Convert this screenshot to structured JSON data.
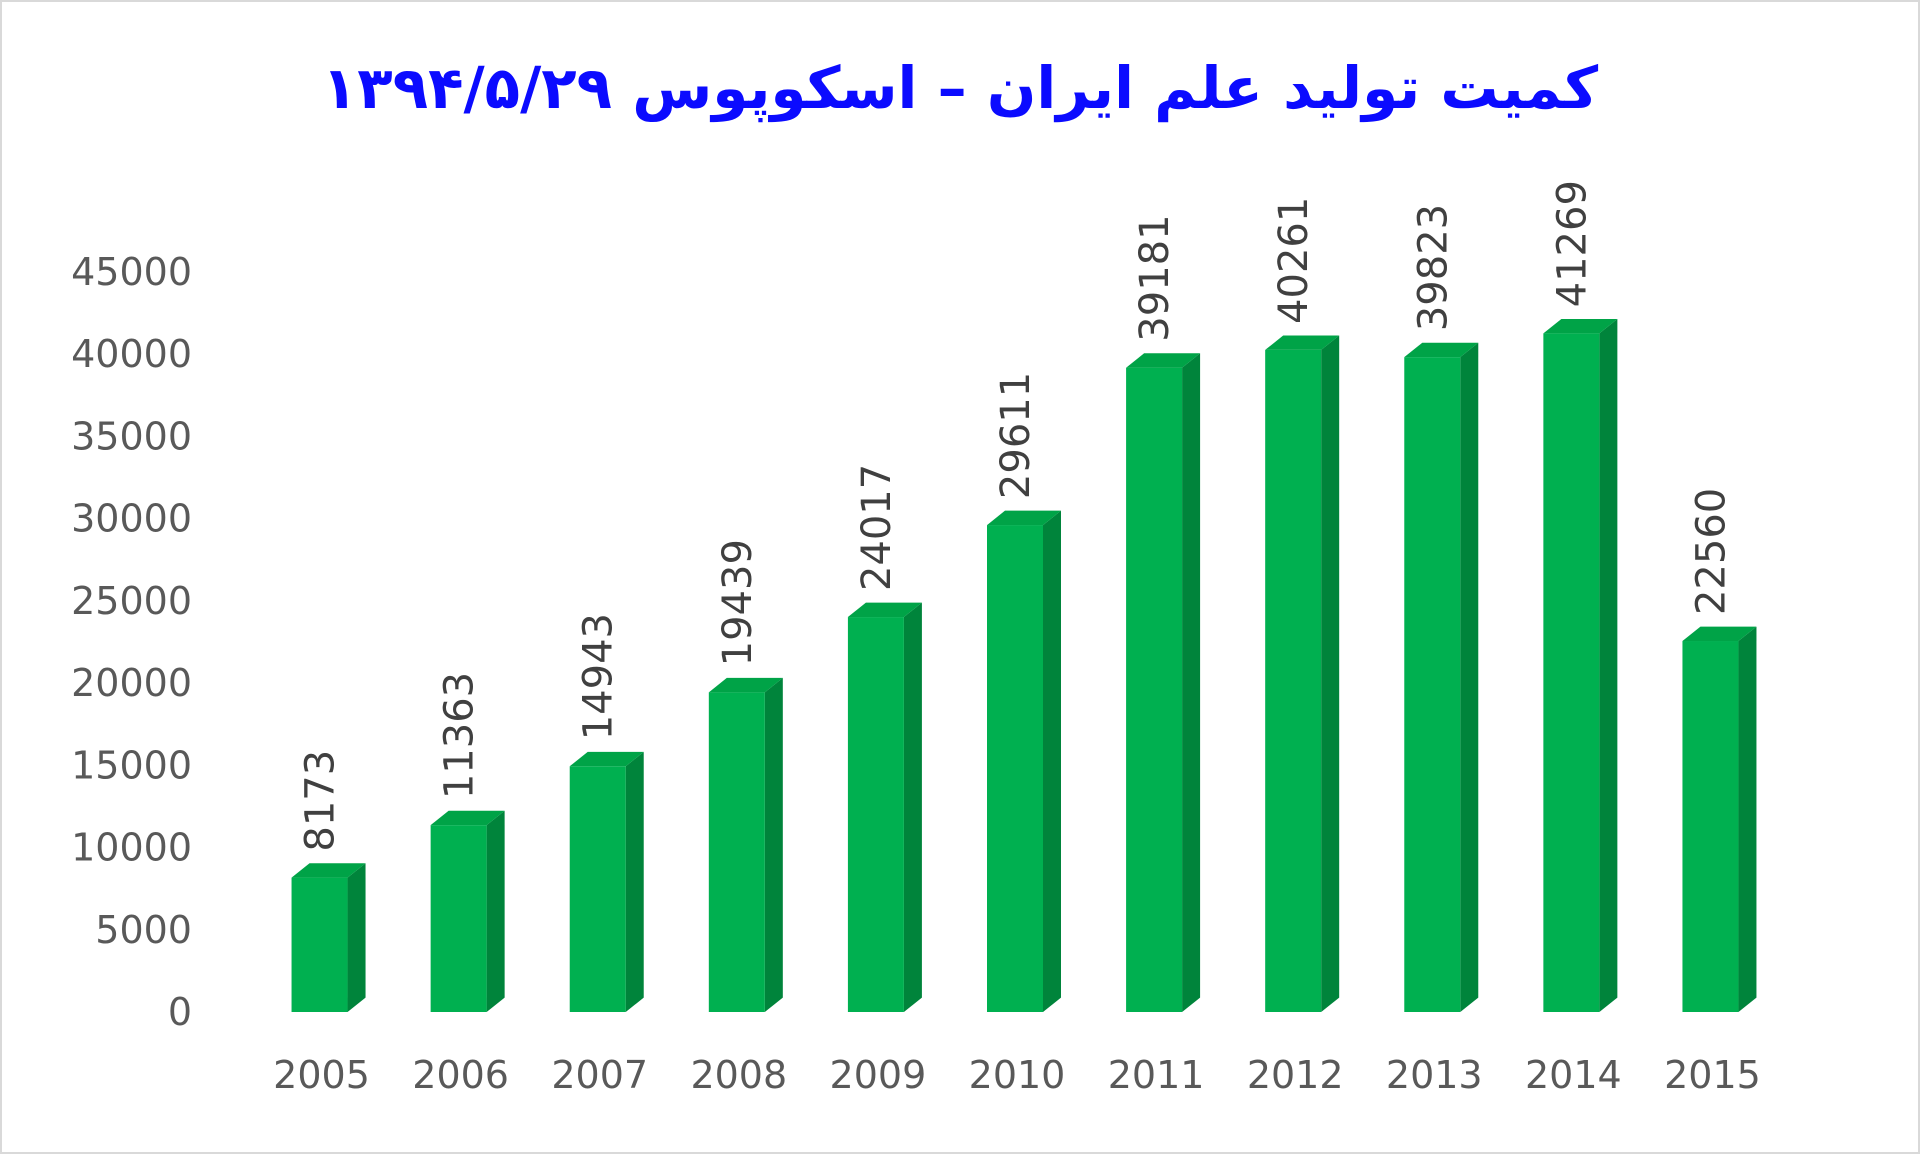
{
  "chart_data": {
    "type": "bar",
    "title": "کمیت تولید علم ایران – اسکوپوس ۱۳۹۴/۵/۲۹",
    "xlabel": "",
    "ylabel": "",
    "categories": [
      "2005",
      "2006",
      "2007",
      "2008",
      "2009",
      "2010",
      "2011",
      "2012",
      "2013",
      "2014",
      "2015"
    ],
    "values": [
      8173,
      11363,
      14943,
      19439,
      24017,
      29611,
      39181,
      40261,
      39823,
      41269,
      22560
    ],
    "value_labels": [
      "8173",
      "11363",
      "14943",
      "19439",
      "24017",
      "29611",
      "39181",
      "40261",
      "39823",
      "41269",
      "22560"
    ],
    "y_ticks": [
      0,
      5000,
      10000,
      15000,
      20000,
      25000,
      30000,
      35000,
      40000,
      45000
    ],
    "ylim": [
      0,
      45000
    ],
    "grid": false,
    "legend": "none",
    "bar_style": "3d-column",
    "colors": {
      "bar_front": "#00b050",
      "bar_side": "#00843b",
      "bar_top": "#00a347",
      "title": "#0b0bff"
    }
  }
}
